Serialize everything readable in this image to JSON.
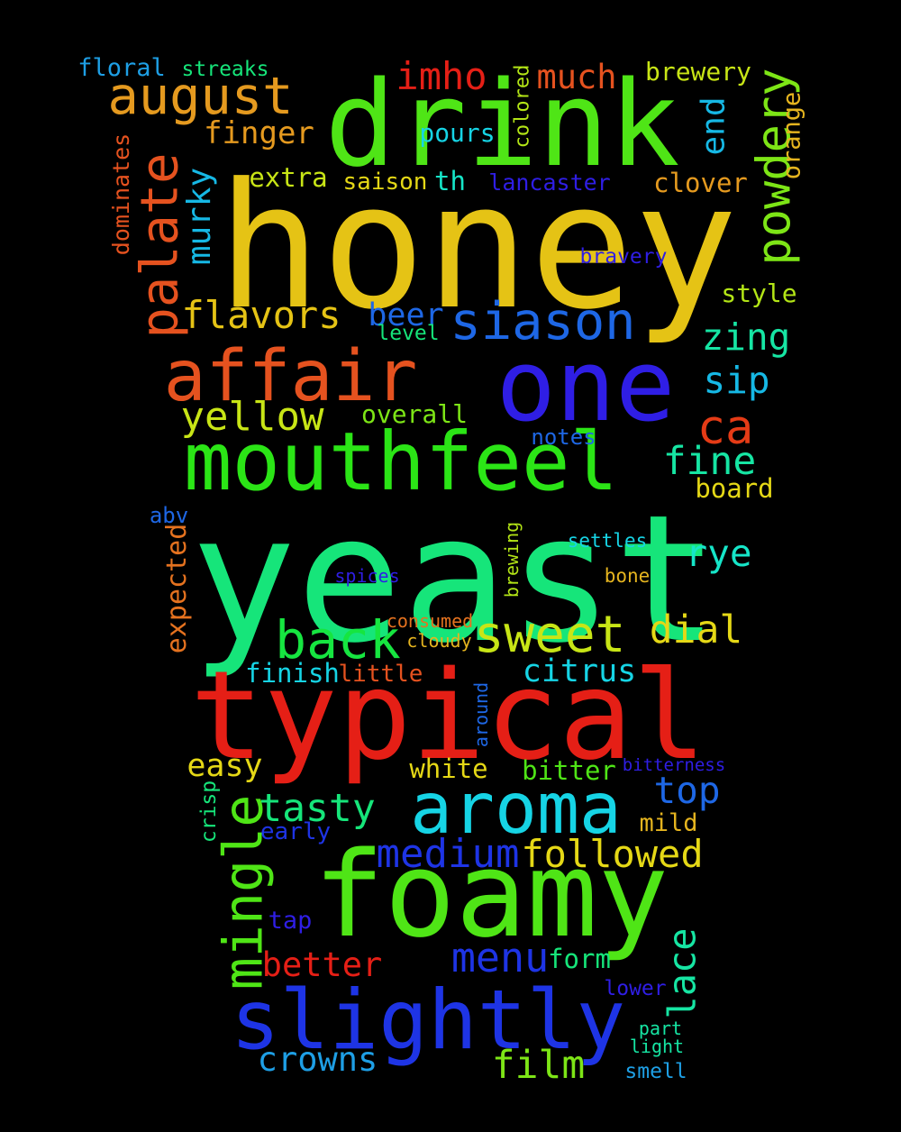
{
  "words": [
    {
      "id": "honey",
      "text": "honey",
      "color": "#e5c315"
    },
    {
      "id": "yeast",
      "text": "yeast",
      "color": "#16e57a"
    },
    {
      "id": "drink",
      "text": "drink",
      "color": "#4fe516"
    },
    {
      "id": "typical",
      "text": "typical",
      "color": "#e51f16"
    },
    {
      "id": "foamy",
      "text": "foamy",
      "color": "#4fe516"
    },
    {
      "id": "one",
      "text": "one",
      "color": "#2f1ee5"
    },
    {
      "id": "slightly",
      "text": "slightly",
      "color": "#1e34e5"
    },
    {
      "id": "affair",
      "text": "affair",
      "color": "#e5521f"
    },
    {
      "id": "mouthfeel",
      "text": "mouthfeel",
      "color": "#2be516"
    },
    {
      "id": "aroma",
      "text": "aroma",
      "color": "#16d4e5"
    },
    {
      "id": "august",
      "text": "august",
      "color": "#e59a1f"
    },
    {
      "id": "palate",
      "text": "palate",
      "color": "#e5521f"
    },
    {
      "id": "siason",
      "text": "siason",
      "color": "#1e67e5"
    },
    {
      "id": "powdery",
      "text": "powdery",
      "color": "#7de516"
    },
    {
      "id": "mingle",
      "text": "mingle",
      "color": "#4fe516"
    },
    {
      "id": "sweet",
      "text": "sweet",
      "color": "#c8e516"
    },
    {
      "id": "back",
      "text": "back",
      "color": "#16e540"
    },
    {
      "id": "imho",
      "text": "imho",
      "color": "#e51f16"
    },
    {
      "id": "much",
      "text": "much",
      "color": "#e5521f"
    },
    {
      "id": "brewery",
      "text": "brewery",
      "color": "#c8e516"
    },
    {
      "id": "floral",
      "text": "floral",
      "color": "#1e9fe5"
    },
    {
      "id": "streaks",
      "text": "streaks",
      "color": "#16e57a"
    },
    {
      "id": "finger",
      "text": "finger",
      "color": "#e59a1f"
    },
    {
      "id": "pours",
      "text": "pours",
      "color": "#16d4e5"
    },
    {
      "id": "colored",
      "text": "colored",
      "color": "#b3e516"
    },
    {
      "id": "end",
      "text": "end",
      "color": "#16b8e5"
    },
    {
      "id": "orange",
      "text": "orange",
      "color": "#e5b41f"
    },
    {
      "id": "dominates",
      "text": "dominates",
      "color": "#e5521f"
    },
    {
      "id": "murky",
      "text": "murky",
      "color": "#16b8e5"
    },
    {
      "id": "extra",
      "text": "extra",
      "color": "#c8e516"
    },
    {
      "id": "saison",
      "text": "saison",
      "color": "#e5d816"
    },
    {
      "id": "th",
      "text": "th",
      "color": "#16e5c8"
    },
    {
      "id": "lancaster",
      "text": "lancaster",
      "color": "#2f1ee5"
    },
    {
      "id": "clover",
      "text": "clover",
      "color": "#e59a1f"
    },
    {
      "id": "bravery",
      "text": "bravery",
      "color": "#2f1ee5"
    },
    {
      "id": "style",
      "text": "style",
      "color": "#b3e516"
    },
    {
      "id": "flavors",
      "text": "flavors",
      "color": "#e5c315"
    },
    {
      "id": "beer",
      "text": "beer",
      "color": "#1e67e5"
    },
    {
      "id": "level",
      "text": "level",
      "color": "#16e57a"
    },
    {
      "id": "zing",
      "text": "zing",
      "color": "#16e5a3"
    },
    {
      "id": "sip",
      "text": "sip",
      "color": "#16b8e5"
    },
    {
      "id": "yellow",
      "text": "yellow",
      "color": "#c8e516"
    },
    {
      "id": "overall",
      "text": "overall",
      "color": "#7de516"
    },
    {
      "id": "ca",
      "text": "ca",
      "color": "#e53b16"
    },
    {
      "id": "notes",
      "text": "notes",
      "color": "#1e67e5"
    },
    {
      "id": "fine",
      "text": "fine",
      "color": "#16e5a3"
    },
    {
      "id": "board",
      "text": "board",
      "color": "#e5d816"
    },
    {
      "id": "abv",
      "text": "abv",
      "color": "#1e67e5"
    },
    {
      "id": "expected",
      "text": "expected",
      "color": "#e5721f"
    },
    {
      "id": "brewing",
      "text": "brewing",
      "color": "#b3e516"
    },
    {
      "id": "settles",
      "text": "settles",
      "color": "#16d4e5"
    },
    {
      "id": "rye",
      "text": "rye",
      "color": "#16e5c8"
    },
    {
      "id": "spices",
      "text": "spices",
      "color": "#2f1ee5"
    },
    {
      "id": "bone",
      "text": "bone",
      "color": "#e5b41f"
    },
    {
      "id": "consumed",
      "text": "consumed",
      "color": "#e5721f"
    },
    {
      "id": "dial",
      "text": "dial",
      "color": "#e5d816"
    },
    {
      "id": "cloudy",
      "text": "cloudy",
      "color": "#e5b41f"
    },
    {
      "id": "finish",
      "text": "finish",
      "color": "#16d4e5"
    },
    {
      "id": "little",
      "text": "little",
      "color": "#e5521f"
    },
    {
      "id": "citrus",
      "text": "citrus",
      "color": "#16d4e5"
    },
    {
      "id": "around",
      "text": "around",
      "color": "#1e67e5"
    },
    {
      "id": "easy",
      "text": "easy",
      "color": "#e5d816"
    },
    {
      "id": "white",
      "text": "white",
      "color": "#e5d816"
    },
    {
      "id": "bitter",
      "text": "bitter",
      "color": "#4fe516"
    },
    {
      "id": "bitterness",
      "text": "bitterness",
      "color": "#2f1ee5"
    },
    {
      "id": "tasty",
      "text": "tasty",
      "color": "#16e57a"
    },
    {
      "id": "top",
      "text": "top",
      "color": "#1e67e5"
    },
    {
      "id": "crisp",
      "text": "crisp",
      "color": "#16e57a"
    },
    {
      "id": "early",
      "text": "early",
      "color": "#1e34e5"
    },
    {
      "id": "mild",
      "text": "mild",
      "color": "#e5b41f"
    },
    {
      "id": "medium",
      "text": "medium",
      "color": "#1e34e5"
    },
    {
      "id": "followed",
      "text": "followed",
      "color": "#e5d816"
    },
    {
      "id": "tap",
      "text": "tap",
      "color": "#2f1ee5"
    },
    {
      "id": "lace",
      "text": "lace",
      "color": "#16e5a3"
    },
    {
      "id": "better",
      "text": "better",
      "color": "#e51f16"
    },
    {
      "id": "menu",
      "text": "menu",
      "color": "#1e34e5"
    },
    {
      "id": "form",
      "text": "form",
      "color": "#16e57a"
    },
    {
      "id": "lower",
      "text": "lower",
      "color": "#2f1ee5"
    },
    {
      "id": "part",
      "text": "part",
      "color": "#16e5a3"
    },
    {
      "id": "light",
      "text": "light",
      "color": "#16e5a3"
    },
    {
      "id": "crowns",
      "text": "crowns",
      "color": "#1e9fe5"
    },
    {
      "id": "film",
      "text": "film",
      "color": "#7de516"
    },
    {
      "id": "smell",
      "text": "smell",
      "color": "#1e9fe5"
    }
  ]
}
